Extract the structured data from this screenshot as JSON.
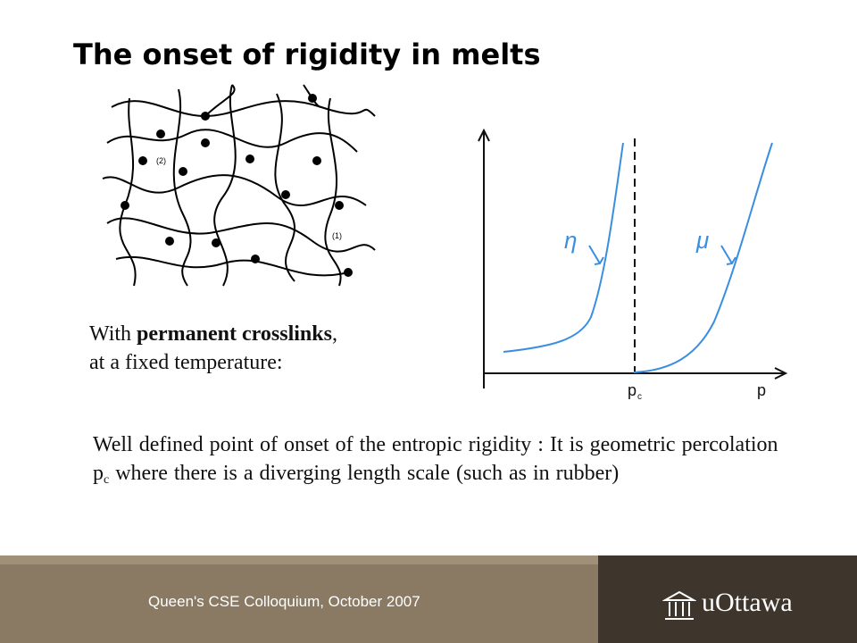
{
  "title": "The onset of rigidity in melts",
  "network_labels": [
    "(2)",
    "(1)"
  ],
  "crosslink_note": {
    "lead": "With ",
    "bold": "permanent crosslinks",
    "trail": ",",
    "line2": "at a fixed temperature:"
  },
  "graph": {
    "curve_labels": [
      "η",
      "μ"
    ],
    "critical_label": "p",
    "critical_subscript": "c",
    "x_label": "p"
  },
  "body": {
    "before": "Well defined point of onset of the entropic rigidity : It is geometric percolation ",
    "symbol": "p",
    "subscript": "c",
    "after": " where there is a diverging length scale (such as in rubber)"
  },
  "footer": {
    "text": "Queen's CSE Colloquium, October 2007",
    "logo": "uOttawa"
  }
}
